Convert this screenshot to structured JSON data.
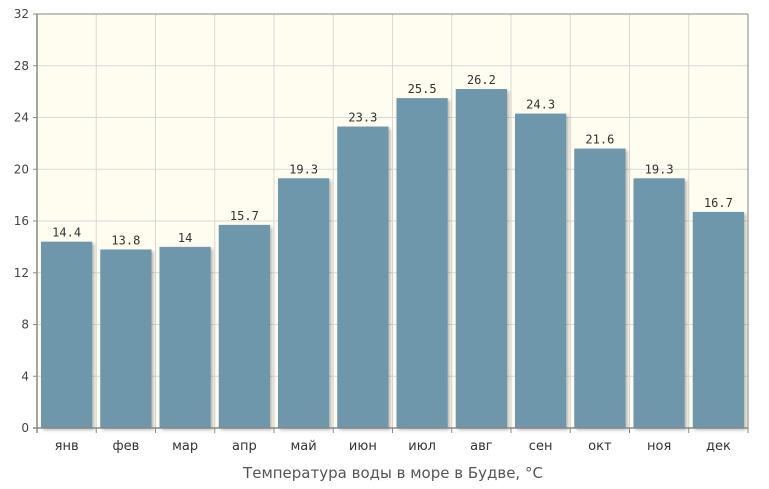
{
  "chart_data": {
    "type": "bar",
    "xlabel": "Температура воды в море в Будве, °C",
    "categories": [
      "янв",
      "фев",
      "мар",
      "апр",
      "май",
      "июн",
      "июл",
      "авг",
      "сен",
      "окт",
      "ноя",
      "дек"
    ],
    "values": [
      14.4,
      13.8,
      14,
      15.7,
      19.3,
      23.3,
      25.5,
      26.2,
      24.3,
      21.6,
      19.3,
      16.7
    ],
    "data_labels": [
      "14.4",
      "13.8",
      "14",
      "15.7",
      "19.3",
      "23.3",
      "25.5",
      "26.2",
      "24.3",
      "21.6",
      "19.3",
      "16.7"
    ],
    "yticks": [
      "0",
      "4",
      "8",
      "12",
      "16",
      "20",
      "24",
      "28",
      "32"
    ],
    "ylim": [
      0,
      32
    ],
    "grid": true,
    "legend": "none",
    "colors": {
      "bar": "#6e97ab",
      "plot_background": "#fffdf0",
      "grid": "#d8d8d8",
      "axis": "#888888"
    }
  }
}
